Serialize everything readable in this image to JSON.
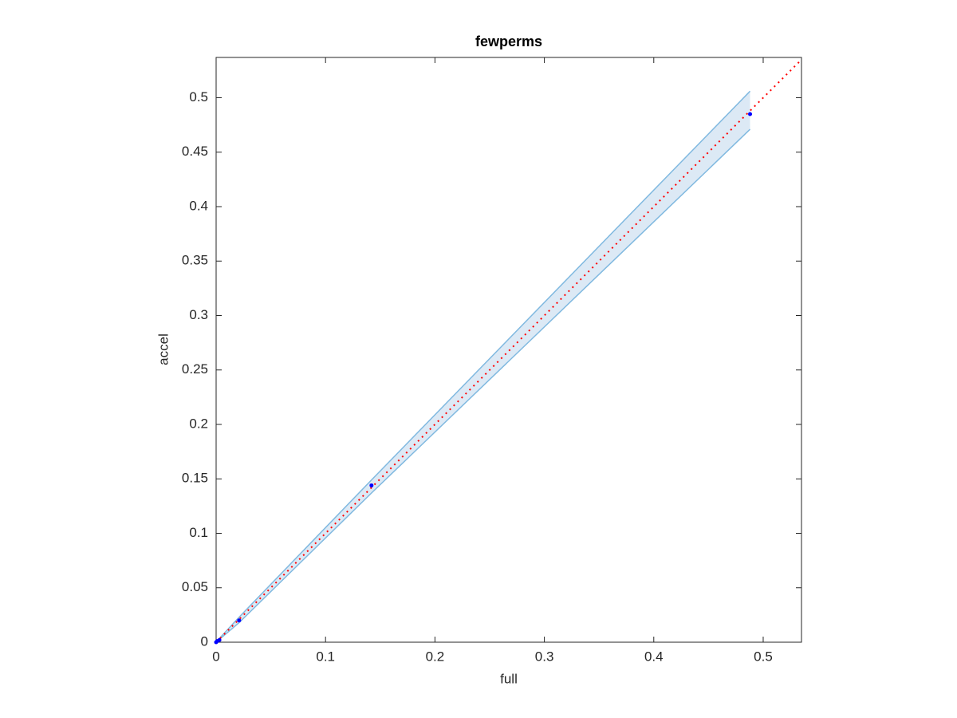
{
  "chart_data": {
    "type": "scatter",
    "title": "fewperms",
    "x_label": "full",
    "y_label": "accel",
    "x": [
      0,
      0.001,
      0.003,
      0.021,
      0.142,
      0.488
    ],
    "series": [
      {
        "color": "#0000ff",
        "values": [
          0,
          0.001,
          0.002,
          0.02,
          0.144,
          0.485
        ]
      }
    ],
    "band": {
      "color": "#80b9e0",
      "fill": "#dce9f5",
      "upper": [
        0,
        0.0012,
        0.0035,
        0.023,
        0.149,
        0.506
      ],
      "lower": [
        0,
        0.0008,
        0.0025,
        0.018,
        0.137,
        0.471
      ]
    },
    "reference_line": {
      "color": "#ff0000",
      "x": [
        0,
        0.535
      ],
      "values": [
        0,
        0.535
      ]
    },
    "xlim": [
      0,
      0.535
    ],
    "ylim": [
      0,
      0.537
    ],
    "xticks": [
      0,
      0.1,
      0.2,
      0.3,
      0.4,
      0.5
    ],
    "yticks": [
      0,
      0.05,
      0.1,
      0.15,
      0.2,
      0.25,
      0.3,
      0.35,
      0.4,
      0.45,
      0.5
    ],
    "grid": false
  }
}
